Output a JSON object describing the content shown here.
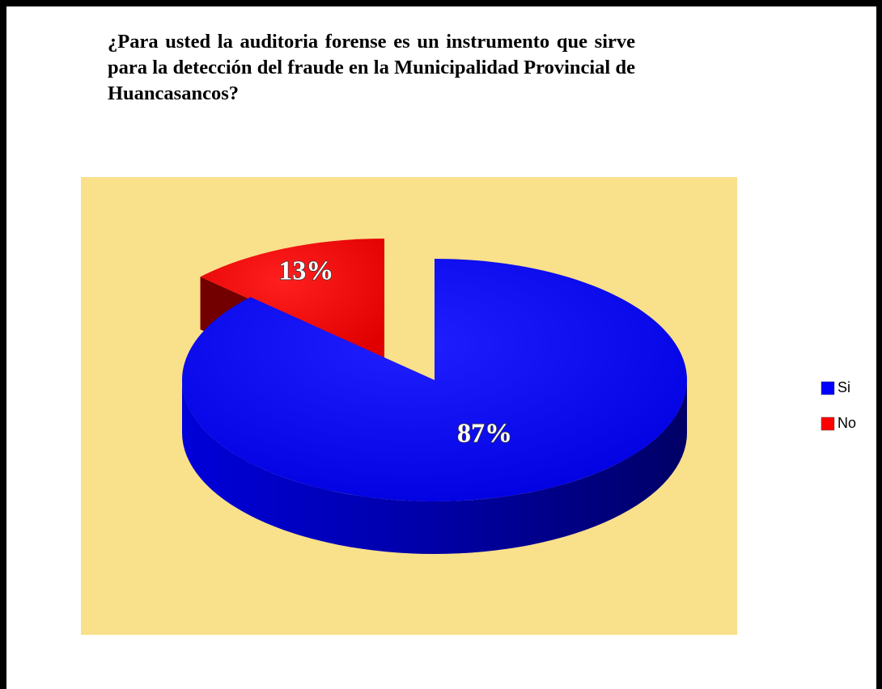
{
  "chart_data": {
    "type": "pie",
    "title": "¿Para usted la auditoria forense es un instrumento que sirve para la detección del fraude en la Municipalidad Provincial de Huancasancos?",
    "categories": [
      "Si",
      "No"
    ],
    "series": [
      {
        "values": [
          87,
          13
        ],
        "value_labels": [
          "87%",
          "13%"
        ],
        "colors": [
          "#0000ff",
          "#ff0000"
        ]
      }
    ],
    "legend": "right"
  }
}
